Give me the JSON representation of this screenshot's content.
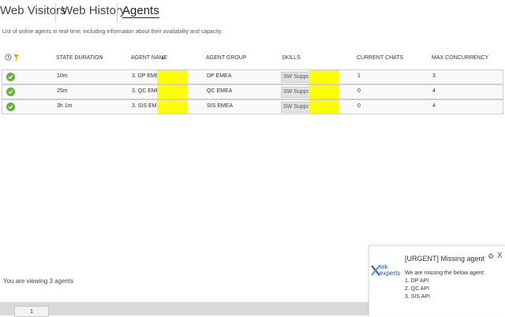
{
  "tabs": [
    {
      "label": "Web Visitors"
    },
    {
      "label": "Web History"
    },
    {
      "label": "Agents"
    }
  ],
  "description": "List of online agents in real-time, including information about their availability and capacity.",
  "table": {
    "headers": {
      "state_duration": "STATE DURATION",
      "agent_name": "AGENT NAME",
      "sort_indicator": "▲",
      "agent_group": "AGENT GROUP",
      "skills": "SKILLS",
      "current_chats": "CURRENT CHATS",
      "max_concurrency": "MAX CONCURRENCY"
    },
    "rows": [
      {
        "duration": "10m",
        "agent_name": "3. DP EMEA",
        "group": "DP EMEA",
        "skill": "SW Support_",
        "current": "1",
        "max": "3"
      },
      {
        "duration": "25m",
        "agent_name": "3. QC EMEA",
        "group": "QC EMEA",
        "skill": "SW Support_",
        "current": "0",
        "max": "4"
      },
      {
        "duration": "3h 1m",
        "agent_name": "3. SIS EMEA",
        "group": "SIS EMEA",
        "skill": "SW Support_",
        "current": "0",
        "max": "4"
      }
    ]
  },
  "footer": {
    "viewing": "You are viewing 3 agents"
  },
  "pager": {
    "page": "1"
  },
  "notification": {
    "title": "[URGENT] Missing agent",
    "intro": "We are missing the below agent:",
    "items": [
      "1. DP API",
      "2. QC API",
      "3. SIS API"
    ],
    "logo_line1": "tek",
    "logo_line2": "experts",
    "gear_icon": "gear-icon",
    "close_label": "X"
  },
  "colors": {
    "status_online": "#62b33c",
    "redaction": "#ffff00",
    "filter": "#f39c12"
  }
}
